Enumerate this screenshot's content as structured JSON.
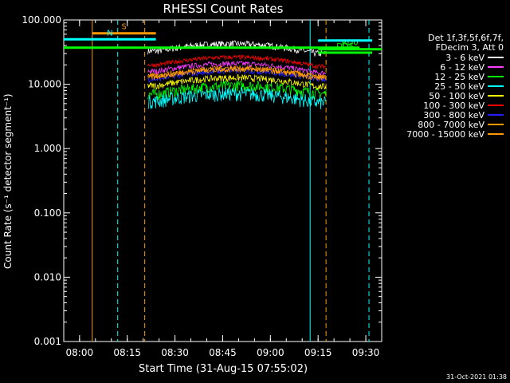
{
  "chart_data": {
    "type": "line",
    "title": "RHESSI Count Rates",
    "xlabel": "Start Time (31-Aug-15 07:55:02)",
    "ylabel": "Count Rate (s⁻¹ detector segment⁻¹)",
    "y_scale": "log",
    "ylim": [
      0.001,
      100
    ],
    "y_ticks": [
      "0.001",
      "0.010",
      "0.100",
      "1.000",
      "10.000",
      "100.000"
    ],
    "xlim": [
      "07:55:02",
      "09:35:00"
    ],
    "x_ticks": [
      "08:00",
      "08:15",
      "08:30",
      "08:45",
      "09:00",
      "09:15",
      "09:30"
    ],
    "data_start": "08:21:30",
    "data_end": "09:17:30",
    "series": [
      {
        "name": "3 - 6 keV",
        "color": "#ffffff",
        "values_start_end": [
          33,
          30
        ],
        "noise": 0.12
      },
      {
        "name": "6 - 12 keV",
        "color": "#ff3cff",
        "values_start_end": [
          16,
          15
        ],
        "noise": 0.1
      },
      {
        "name": "12 - 25 keV",
        "color": "#00ff00",
        "values_start_end": [
          7.0,
          7.2
        ],
        "noise": 0.2
      },
      {
        "name": "25 - 50 keV",
        "color": "#00ffff",
        "values_start_end": [
          5.5,
          5.2
        ],
        "noise": 0.25
      },
      {
        "name": "50 - 100 keV",
        "color": "#ffff00",
        "values_start_end": [
          9.5,
          9.2
        ],
        "noise": 0.12
      },
      {
        "name": "100 - 300 keV",
        "color": "#ff0000",
        "values_start_end": [
          20,
          19
        ],
        "noise": 0.08
      },
      {
        "name": "300 - 800 keV",
        "color": "#2020ff",
        "values_start_end": [
          12,
          12
        ],
        "noise": 0.1
      },
      {
        "name": "800 - 7000 keV",
        "color": "#ff9900",
        "values_start_end": [
          13.5,
          13
        ],
        "noise": 0.1
      },
      {
        "name": "7000 - 15000 keV",
        "color": "#ff9900",
        "values_start_end": [
          13,
          12.5
        ],
        "noise": 0.1
      }
    ],
    "legend_header": [
      "Det 1f,3f,5f,6f,7f,",
      "FDecim 3, Att 0"
    ],
    "legend_position": "right",
    "attenuator_bars": [
      {
        "label": "S",
        "color": "#ff9900",
        "start": "08:04:00",
        "end": "08:24:00",
        "value": 62
      },
      {
        "label": "N",
        "color": "#00ffff",
        "start": "07:55:02",
        "end": "08:24:00",
        "value": 50
      },
      {
        "label": "",
        "color": "#00ff00",
        "start": "07:55:02",
        "end": "09:28:00",
        "value": 37
      },
      {
        "label": "RD0",
        "color": "#00ff00",
        "start": "09:15:00",
        "end": "09:35:00",
        "value": 35
      },
      {
        "label": "",
        "color": "#00ffff",
        "start": "09:15:00",
        "end": "09:32:00",
        "value": 48
      },
      {
        "label": "DDS",
        "color": "#00ff00",
        "start": "09:15:00",
        "end": "09:32:00",
        "value": 31
      }
    ],
    "vertical_markers": [
      {
        "time": "08:04:00",
        "color": "#ff9900",
        "style": "solid"
      },
      {
        "time": "08:12:00",
        "color": "#00ffff",
        "style": "dashed"
      },
      {
        "time": "08:20:30",
        "color": "#ff9900",
        "style": "dashed"
      },
      {
        "time": "09:12:30",
        "color": "#00ffff",
        "style": "solid"
      },
      {
        "time": "09:17:30",
        "color": "#ff9900",
        "style": "dashed"
      },
      {
        "time": "09:31:00",
        "color": "#00ffff",
        "style": "dashed"
      }
    ]
  },
  "timestamp": "31-Oct-2021 01:38"
}
